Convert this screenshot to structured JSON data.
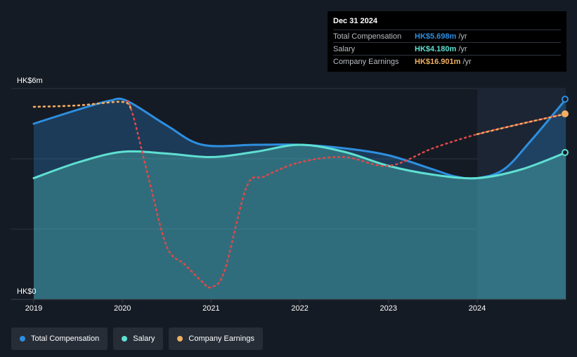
{
  "chart_data": {
    "type": "area",
    "y_axis": {
      "top_label": "HK$6m",
      "bottom_label": "HK$0",
      "ylim": [
        0,
        6
      ]
    },
    "x_ticks": [
      "2019",
      "2020",
      "2021",
      "2022",
      "2023",
      "2024"
    ],
    "series": [
      {
        "name": "Total Compensation",
        "color": "#2e8fe0",
        "style": "area-line",
        "points": [
          [
            2019.0,
            5.0
          ],
          [
            2019.5,
            5.4
          ],
          [
            2019.85,
            5.65
          ],
          [
            2020.05,
            5.65
          ],
          [
            2020.5,
            4.95
          ],
          [
            2020.9,
            4.4
          ],
          [
            2021.5,
            4.4
          ],
          [
            2022.0,
            4.4
          ],
          [
            2022.5,
            4.3
          ],
          [
            2023.0,
            4.1
          ],
          [
            2023.5,
            3.7
          ],
          [
            2023.75,
            3.5
          ],
          [
            2024.0,
            3.45
          ],
          [
            2024.3,
            3.7
          ],
          [
            2024.6,
            4.5
          ],
          [
            2025.0,
            5.698
          ]
        ]
      },
      {
        "name": "Salary",
        "color": "#5fe0d2",
        "style": "area-line",
        "points": [
          [
            2019.0,
            3.45
          ],
          [
            2019.5,
            3.9
          ],
          [
            2020.0,
            4.2
          ],
          [
            2020.5,
            4.15
          ],
          [
            2021.0,
            4.05
          ],
          [
            2021.5,
            4.2
          ],
          [
            2022.0,
            4.4
          ],
          [
            2022.5,
            4.2
          ],
          [
            2023.0,
            3.8
          ],
          [
            2023.5,
            3.55
          ],
          [
            2024.0,
            3.45
          ],
          [
            2024.5,
            3.7
          ],
          [
            2025.0,
            4.18
          ]
        ]
      },
      {
        "name": "Company Earnings",
        "color": "#f0b060",
        "style": "dotted",
        "points": [
          [
            2019.0,
            5.48
          ],
          [
            2019.5,
            5.52
          ],
          [
            2020.0,
            5.62
          ],
          [
            2020.1,
            5.4
          ],
          [
            2020.3,
            3.4
          ],
          [
            2020.5,
            1.5
          ],
          [
            2020.7,
            1.0
          ],
          [
            2020.9,
            0.5
          ],
          [
            2021.0,
            0.35
          ],
          [
            2021.15,
            0.8
          ],
          [
            2021.4,
            3.2
          ],
          [
            2021.6,
            3.5
          ],
          [
            2022.0,
            3.9
          ],
          [
            2022.5,
            4.05
          ],
          [
            2023.0,
            3.8
          ],
          [
            2023.5,
            4.3
          ],
          [
            2024.0,
            4.7
          ],
          [
            2024.5,
            5.0
          ],
          [
            2025.0,
            5.28
          ]
        ]
      }
    ],
    "highlight_region": {
      "from": 2024.0,
      "to": 2025.0
    },
    "grid": true,
    "legend_placement": "bottom-left"
  },
  "tooltip": {
    "date": "Dec 31 2024",
    "rows": [
      {
        "label": "Total Compensation",
        "value": "HK$5.698m",
        "unit": "/yr",
        "color": "#2e8fe0"
      },
      {
        "label": "Salary",
        "value": "HK$4.180m",
        "unit": "/yr",
        "color": "#5fe0d2"
      },
      {
        "label": "Company Earnings",
        "value": "HK$16.901m",
        "unit": "/yr",
        "color": "#f0b060"
      }
    ]
  },
  "legend": [
    {
      "label": "Total Compensation",
      "color": "#2e8fe0"
    },
    {
      "label": "Salary",
      "color": "#5fe0d2"
    },
    {
      "label": "Company Earnings",
      "color": "#f0b060"
    }
  ]
}
